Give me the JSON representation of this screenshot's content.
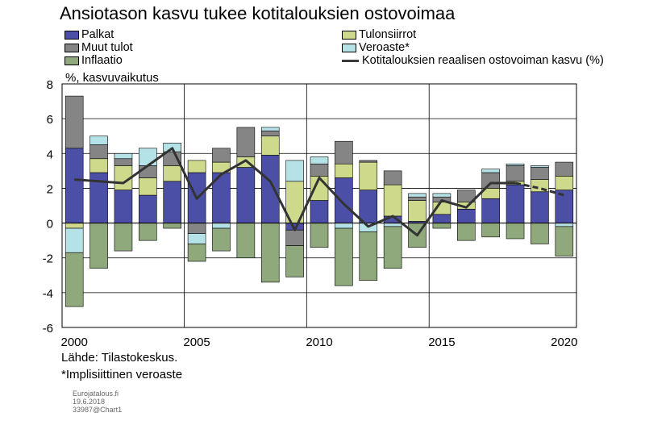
{
  "chart_data": {
    "type": "bar",
    "subtype": "stacked-bar-with-line",
    "title": "Ansiotason kasvu tukee kotitalouksien ostovoimaa",
    "ylabel": "%, kasvuvaikutus",
    "ylim": [
      -6,
      8
    ],
    "yticks": [
      "8",
      "6",
      "4",
      "2",
      "0",
      "-2",
      "-4",
      "-6"
    ],
    "xtick_labels": [
      "2000",
      "2005",
      "2010",
      "2015",
      "2020"
    ],
    "categories": [
      2000,
      2001,
      2002,
      2003,
      2004,
      2005,
      2006,
      2007,
      2008,
      2009,
      2010,
      2011,
      2012,
      2013,
      2014,
      2015,
      2016,
      2017,
      2018,
      2019,
      2020
    ],
    "grid": true,
    "series": [
      {
        "name": "Palkat",
        "color": "#4b4fa6",
        "values": [
          4.3,
          2.9,
          1.9,
          1.6,
          2.4,
          2.9,
          2.9,
          3.2,
          3.9,
          -0.4,
          1.3,
          2.6,
          1.9,
          0.4,
          0.1,
          0.5,
          0.8,
          1.4,
          2.2,
          1.8,
          1.9
        ]
      },
      {
        "name": "Tulonsiirrot",
        "color": "#ced98b",
        "values": [
          -0.3,
          0.8,
          1.4,
          1.0,
          0.9,
          0.7,
          0.6,
          0.6,
          1.1,
          2.4,
          1.4,
          0.8,
          1.6,
          1.8,
          1.2,
          0.7,
          0.4,
          0.6,
          0.2,
          0.7,
          0.8
        ]
      },
      {
        "name": "Muut tulot",
        "color": "#858585",
        "values": [
          3.0,
          0.8,
          0.4,
          0.7,
          0.8,
          -0.6,
          0.8,
          1.7,
          0.3,
          -0.9,
          0.7,
          1.3,
          0.1,
          0.8,
          0.2,
          0.3,
          0.7,
          0.9,
          0.9,
          0.7,
          0.8
        ]
      },
      {
        "name": "Veroaste*",
        "color": "#b5e2e6",
        "values": [
          -1.4,
          0.5,
          0.3,
          1.0,
          0.5,
          -0.6,
          -0.3,
          0.0,
          0.2,
          1.2,
          0.4,
          -0.3,
          -0.5,
          -0.2,
          0.2,
          0.2,
          0.0,
          0.2,
          0.1,
          0.1,
          -0.2
        ]
      },
      {
        "name": "Inflaatio",
        "color": "#8fa87c",
        "values": [
          -3.1,
          -2.6,
          -1.6,
          -1.0,
          -0.3,
          -1.0,
          -1.3,
          -2.0,
          -3.4,
          -1.8,
          -1.4,
          -3.3,
          -2.8,
          -2.4,
          -1.4,
          -0.3,
          -1.0,
          -0.8,
          -0.9,
          -1.2,
          -1.7
        ]
      }
    ],
    "line_series": {
      "name": "Kotitalouksien reaalisen ostovoiman kasvu (%)",
      "color": "#333333",
      "values": [
        2.5,
        2.4,
        2.3,
        3.3,
        4.3,
        1.4,
        2.8,
        3.6,
        2.4,
        -0.4,
        2.6,
        1.1,
        -0.2,
        0.4,
        -0.7,
        1.3,
        0.9,
        2.3,
        2.3,
        2.0,
        1.6
      ],
      "dashed_from": 2018
    }
  },
  "legend": {
    "palkat": "Palkat",
    "muut_tulot": "Muut tulot",
    "inflaatio": "Inflaatio",
    "tulonsiirrot": "Tulonsiirrot",
    "veroaste": "Veroaste*",
    "line": "Kotitalouksien reaalisen ostovoiman kasvu (%)"
  },
  "footer": {
    "source": "Lähde: Tilastokeskus.",
    "note": "*Implisiittinen  veroaste",
    "publisher": "Eurojatalous.fi",
    "date": "19.6.2018",
    "chart_id": "33987@Chart1"
  }
}
